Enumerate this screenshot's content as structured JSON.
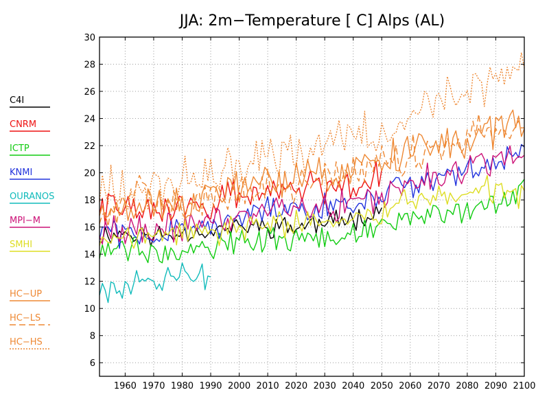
{
  "chart_data": {
    "type": "line",
    "title": "JJA: 2m−Temperature [   C] Alps (AL)",
    "xlabel": "",
    "ylabel": "",
    "xlim": [
      1951,
      2100
    ],
    "ylim": [
      5,
      30
    ],
    "x_ticks": [
      "1960",
      "1970",
      "1980",
      "1990",
      "2000",
      "2010",
      "2020",
      "2030",
      "2040",
      "2050",
      "2060",
      "2070",
      "2080",
      "2090",
      "2100"
    ],
    "y_ticks": [
      "6",
      "8",
      "10",
      "12",
      "14",
      "16",
      "18",
      "20",
      "22",
      "24",
      "26",
      "28",
      "30"
    ],
    "grid": true,
    "legend_position": "left",
    "series": [
      {
        "name": "C4I",
        "color": "#000000",
        "style": "solid",
        "year_range": [
          1951,
          2050
        ],
        "anchors": [
          [
            1951,
            15.4
          ],
          [
            1960,
            15.6
          ],
          [
            1970,
            15.3
          ],
          [
            1980,
            15.6
          ],
          [
            1990,
            15.7
          ],
          [
            2000,
            16.0
          ],
          [
            2010,
            16.1
          ],
          [
            2020,
            16.0
          ],
          [
            2030,
            16.3
          ],
          [
            2040,
            16.6
          ],
          [
            2050,
            17.4
          ]
        ],
        "amplitude": 1.0,
        "seed": 11
      },
      {
        "name": "CNRM",
        "color": "#ee1111",
        "style": "solid",
        "year_range": [
          1951,
          2050
        ],
        "anchors": [
          [
            1951,
            17.6
          ],
          [
            1960,
            17.3
          ],
          [
            1970,
            17.0
          ],
          [
            1980,
            17.5
          ],
          [
            1990,
            17.8
          ],
          [
            2000,
            18.3
          ],
          [
            2010,
            18.8
          ],
          [
            2020,
            19.0
          ],
          [
            2030,
            19.0
          ],
          [
            2040,
            19.3
          ],
          [
            2050,
            19.9
          ]
        ],
        "amplitude": 1.5,
        "seed": 22
      },
      {
        "name": "ICTP",
        "color": "#11cc11",
        "style": "solid",
        "year_range": [
          1951,
          2100
        ],
        "anchors": [
          [
            1951,
            14.3
          ],
          [
            1960,
            14.2
          ],
          [
            1970,
            14.5
          ],
          [
            1980,
            14.4
          ],
          [
            1990,
            14.8
          ],
          [
            2000,
            14.8
          ],
          [
            2010,
            15.2
          ],
          [
            2020,
            15.1
          ],
          [
            2030,
            15.2
          ],
          [
            2040,
            15.5
          ],
          [
            2050,
            16.0
          ],
          [
            2060,
            16.7
          ],
          [
            2070,
            17.1
          ],
          [
            2080,
            17.6
          ],
          [
            2090,
            18.0
          ],
          [
            2100,
            18.8
          ]
        ],
        "amplitude": 1.3,
        "seed": 33
      },
      {
        "name": "KNMI",
        "color": "#2233dd",
        "style": "solid",
        "year_range": [
          1951,
          2100
        ],
        "anchors": [
          [
            1951,
            15.7
          ],
          [
            1960,
            15.6
          ],
          [
            1970,
            15.5
          ],
          [
            1980,
            15.8
          ],
          [
            1990,
            16.0
          ],
          [
            2000,
            16.6
          ],
          [
            2010,
            17.0
          ],
          [
            2020,
            17.2
          ],
          [
            2030,
            17.4
          ],
          [
            2040,
            17.8
          ],
          [
            2050,
            18.3
          ],
          [
            2060,
            19.1
          ],
          [
            2070,
            19.6
          ],
          [
            2080,
            20.2
          ],
          [
            2090,
            20.9
          ],
          [
            2100,
            21.6
          ]
        ],
        "amplitude": 1.3,
        "seed": 44
      },
      {
        "name": "OURANOS",
        "color": "#11bbbb",
        "style": "solid",
        "year_range": [
          1951,
          1990
        ],
        "anchors": [
          [
            1951,
            11.6
          ],
          [
            1960,
            11.7
          ],
          [
            1970,
            12.0
          ],
          [
            1980,
            12.3
          ],
          [
            1990,
            12.6
          ]
        ],
        "amplitude": 1.3,
        "seed": 55
      },
      {
        "name": "MPI−M",
        "color": "#cc1177",
        "style": "solid",
        "year_range": [
          1951,
          2100
        ],
        "anchors": [
          [
            1951,
            16.0
          ],
          [
            1960,
            15.8
          ],
          [
            1970,
            15.7
          ],
          [
            1980,
            16.0
          ],
          [
            1990,
            16.4
          ],
          [
            2000,
            16.8
          ],
          [
            2010,
            17.2
          ],
          [
            2020,
            17.4
          ],
          [
            2030,
            17.5
          ],
          [
            2040,
            17.9
          ],
          [
            2050,
            18.4
          ],
          [
            2060,
            19.2
          ],
          [
            2070,
            19.8
          ],
          [
            2080,
            20.4
          ],
          [
            2090,
            21.0
          ],
          [
            2100,
            21.9
          ]
        ],
        "amplitude": 1.4,
        "seed": 66
      },
      {
        "name": "SMHI",
        "color": "#dddd22",
        "style": "solid",
        "year_range": [
          1951,
          2100
        ],
        "anchors": [
          [
            1951,
            15.2
          ],
          [
            1960,
            15.2
          ],
          [
            1970,
            15.3
          ],
          [
            1980,
            15.5
          ],
          [
            1990,
            15.6
          ],
          [
            2000,
            15.8
          ],
          [
            2010,
            16.2
          ],
          [
            2020,
            16.2
          ],
          [
            2030,
            16.4
          ],
          [
            2040,
            16.6
          ],
          [
            2050,
            17.1
          ],
          [
            2060,
            17.8
          ],
          [
            2070,
            18.2
          ],
          [
            2080,
            18.5
          ],
          [
            2090,
            18.7
          ],
          [
            2100,
            18.4
          ]
        ],
        "amplitude": 1.2,
        "seed": 77
      },
      {
        "name": "HC−UP",
        "color": "#ee8833",
        "style": "solid",
        "year_range": [
          1951,
          2100
        ],
        "anchors": [
          [
            1951,
            17.6
          ],
          [
            1960,
            17.4
          ],
          [
            1970,
            17.6
          ],
          [
            1980,
            18.0
          ],
          [
            1990,
            18.3
          ],
          [
            2000,
            19.0
          ],
          [
            2010,
            19.3
          ],
          [
            2020,
            19.6
          ],
          [
            2030,
            19.8
          ],
          [
            2040,
            20.2
          ],
          [
            2050,
            20.9
          ],
          [
            2060,
            21.3
          ],
          [
            2070,
            21.7
          ],
          [
            2080,
            22.3
          ],
          [
            2090,
            23.0
          ],
          [
            2100,
            23.4
          ]
        ],
        "amplitude": 1.6,
        "seed": 88
      },
      {
        "name": "HC−LS",
        "color": "#ee8833",
        "style": "dashed",
        "year_range": [
          1951,
          2100
        ],
        "anchors": [
          [
            1951,
            17.0
          ],
          [
            1960,
            17.2
          ],
          [
            1965,
            20.0
          ],
          [
            1970,
            17.3
          ],
          [
            1980,
            17.6
          ],
          [
            1990,
            18.0
          ],
          [
            2000,
            18.5
          ],
          [
            2010,
            18.9
          ],
          [
            2020,
            19.2
          ],
          [
            2030,
            19.6
          ],
          [
            2040,
            20.1
          ],
          [
            2050,
            20.8
          ],
          [
            2060,
            21.4
          ],
          [
            2070,
            22.0
          ],
          [
            2080,
            22.6
          ],
          [
            2090,
            23.3
          ],
          [
            2100,
            24.0
          ]
        ],
        "amplitude": 1.6,
        "seed": 99
      },
      {
        "name": "HC−HS",
        "color": "#ee8833",
        "style": "dotted",
        "year_range": [
          1951,
          2100
        ],
        "anchors": [
          [
            1951,
            18.6
          ],
          [
            1960,
            18.8
          ],
          [
            1970,
            19.0
          ],
          [
            1980,
            19.5
          ],
          [
            1990,
            19.8
          ],
          [
            2000,
            20.6
          ],
          [
            2010,
            21.3
          ],
          [
            2020,
            21.6
          ],
          [
            2030,
            22.0
          ],
          [
            2040,
            22.6
          ],
          [
            2050,
            23.5
          ],
          [
            2060,
            24.4
          ],
          [
            2070,
            25.2
          ],
          [
            2080,
            26.0
          ],
          [
            2090,
            27.3
          ],
          [
            2100,
            28.0
          ]
        ],
        "amplitude": 2.0,
        "seed": 111
      }
    ]
  }
}
